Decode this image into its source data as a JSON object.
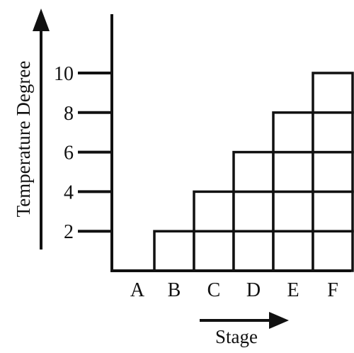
{
  "chart_data": {
    "type": "bar",
    "title": "",
    "xlabel": "Stage",
    "ylabel": "Temperature Degree",
    "categories": [
      "A",
      "B",
      "C",
      "D",
      "E",
      "F"
    ],
    "values": [
      0,
      2,
      4,
      6,
      8,
      10
    ],
    "ylim": [
      0,
      10
    ],
    "yticks": [
      "2",
      "4",
      "6",
      "8",
      "10"
    ],
    "ytick_values": [
      2,
      4,
      6,
      8,
      10
    ],
    "grid": true,
    "legend": "none",
    "bar_style": "stacked unit squares, outlined",
    "colors": {
      "ink": "#111111",
      "background": "#ffffff"
    }
  }
}
